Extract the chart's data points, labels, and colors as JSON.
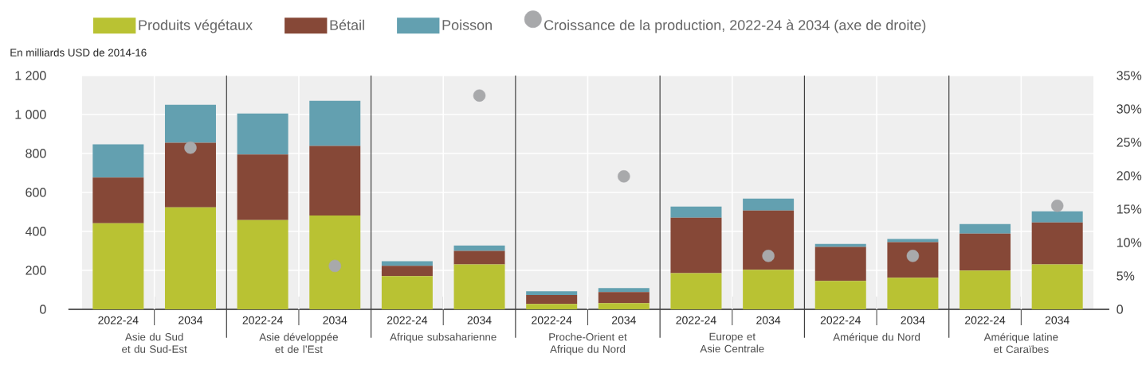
{
  "chart_data": {
    "type": "bar",
    "stacked": true,
    "ylabel": "En milliards USD  de 2014-16",
    "categories": [
      "2022-24",
      "2034",
      "2022-24",
      "2034",
      "2022-24",
      "2034",
      "2022-24",
      "2034",
      "2022-24",
      "2034",
      "2022-24",
      "2034",
      "2022-24",
      "2034"
    ],
    "series": [
      {
        "name": "Produits végétaux",
        "color": "#b9c233",
        "values": [
          442,
          523,
          458,
          482,
          170,
          231,
          28,
          32,
          186,
          203,
          146,
          162,
          199,
          231
        ]
      },
      {
        "name": "Bétail",
        "color": "#864837",
        "values": [
          235,
          332,
          337,
          357,
          53,
          69,
          45,
          57,
          284,
          304,
          174,
          183,
          190,
          215
        ]
      },
      {
        "name": "Poisson",
        "color": "#63a0b0",
        "values": [
          170,
          195,
          210,
          231,
          24,
          28,
          20,
          20,
          57,
          61,
          16,
          16,
          49,
          57
        ]
      },
      {
        "name": "Croissance de la production, 2022-24 à 2034 (axe de droite)",
        "type": "scatter",
        "axis": "y2",
        "marker": "circle",
        "color": "#a8a9ab",
        "values": [
          null,
          24.2,
          null,
          6.5,
          null,
          32,
          null,
          19.9,
          null,
          8,
          null,
          8,
          null,
          15.5
        ]
      }
    ],
    "ylim": [
      0,
      1200
    ],
    "yticks": [
      0,
      200,
      400,
      600,
      800,
      {
        "value": 1000,
        "label": "1 000"
      },
      {
        "value": 1200,
        "label": "1 200"
      }
    ],
    "y2lim": [
      0,
      35
    ],
    "y2ticks": [
      0,
      {
        "value": 5,
        "label": "5%"
      },
      {
        "value": 10,
        "label": "10%"
      },
      {
        "value": 15,
        "label": "15%"
      },
      {
        "value": 20,
        "label": "20%"
      },
      {
        "value": 25,
        "label": "25%"
      },
      {
        "value": 30,
        "label": "30%"
      },
      {
        "value": 35,
        "label": "35%"
      }
    ],
    "annotations": [
      "Asie du Sud et du Sud-Est",
      "Asie développée et de l’Est",
      "Afrique subsaharienne",
      "Proche-Orient et Afrique du Nord",
      "Europe et Asie Centrale",
      "Amérique du Nord",
      "Amérique latine et Caraïbes"
    ],
    "grid": "y",
    "legend": "top"
  }
}
